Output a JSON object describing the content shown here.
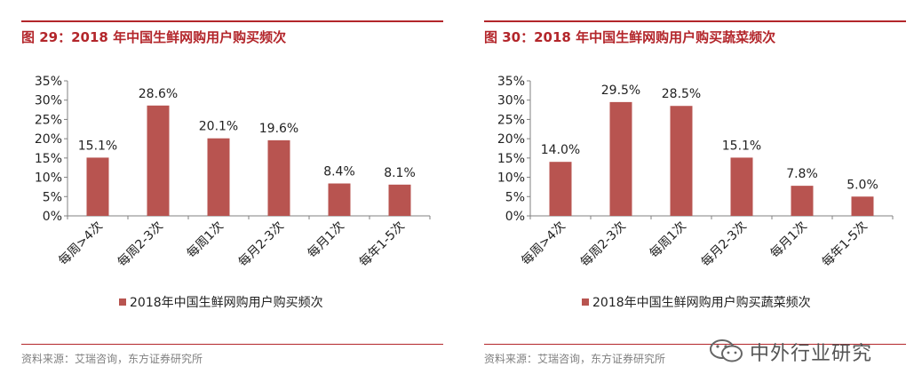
{
  "left": {
    "figure_label": "图 29：",
    "figure_title": "2018 年中国生鲜网购用户购买频次",
    "source": "资料来源：艾瑞咨询，东方证券研究所"
  },
  "right": {
    "figure_label": "图 30：",
    "figure_title": "2018 年中国生鲜网购用户购买蔬菜频次",
    "source": "资料来源：艾瑞咨询，东方证券研究所"
  },
  "watermark": {
    "text": "中外行业研究",
    "icon": "wechat-icon"
  },
  "colors": {
    "bar": "#b85450",
    "accent": "#b3262b",
    "axis": "#808080"
  },
  "chart_data": [
    {
      "type": "bar",
      "title": "2018 年中国生鲜网购用户购买频次",
      "categories": [
        "每周>4次",
        "每周2-3次",
        "每周1次",
        "每月2-3次",
        "每月1次",
        "每年1-5次"
      ],
      "values": [
        15.1,
        28.6,
        20.1,
        19.6,
        8.4,
        8.1
      ],
      "value_labels": [
        "15.1%",
        "28.6%",
        "20.1%",
        "19.6%",
        "8.4%",
        "8.1%"
      ],
      "ylim": [
        0,
        35
      ],
      "yticks": [
        "0%",
        "5%",
        "10%",
        "15%",
        "20%",
        "25%",
        "30%",
        "35%"
      ],
      "legend": "2018年中国生鲜网购用户购买频次",
      "xlabel": "",
      "ylabel": ""
    },
    {
      "type": "bar",
      "title": "2018 年中国生鲜网购用户购买蔬菜频次",
      "categories": [
        "每周>4次",
        "每周2-3次",
        "每周1次",
        "每月2-3次",
        "每月1次",
        "每年1-5次"
      ],
      "values": [
        14.0,
        29.5,
        28.5,
        15.1,
        7.8,
        5.0
      ],
      "value_labels": [
        "14.0%",
        "29.5%",
        "28.5%",
        "15.1%",
        "7.8%",
        "5.0%"
      ],
      "ylim": [
        0,
        35
      ],
      "yticks": [
        "0%",
        "5%",
        "10%",
        "15%",
        "20%",
        "25%",
        "30%",
        "35%"
      ],
      "legend": "2018年中国生鲜网购用户购买蔬菜频次",
      "xlabel": "",
      "ylabel": ""
    }
  ]
}
